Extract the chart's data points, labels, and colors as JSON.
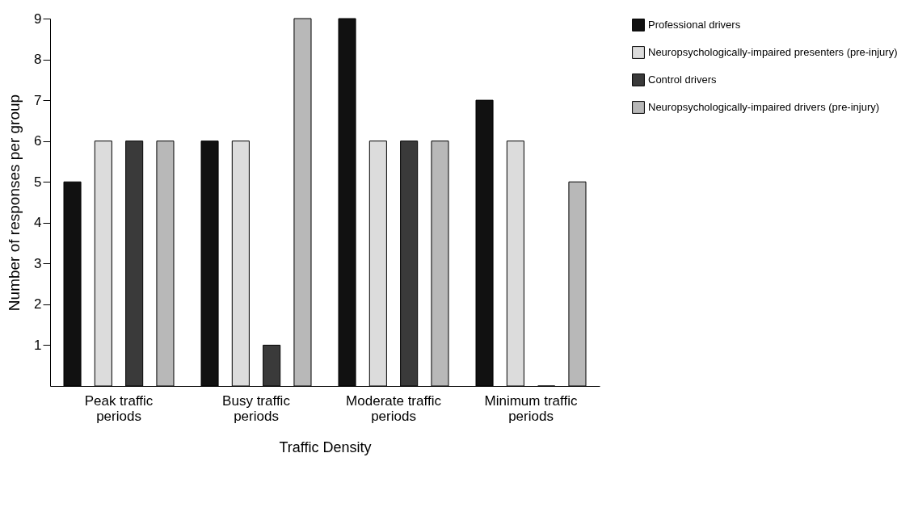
{
  "chart_data": {
    "type": "bar",
    "xlabel": "Traffic Density",
    "ylabel": "Number of responses per group",
    "categories": [
      "Peak traffic periods",
      "Busy traffic periods",
      "Moderate traffic periods",
      "Minimum traffic periods"
    ],
    "series": [
      {
        "name": "Professional drivers",
        "color": "#111111",
        "values": [
          5,
          6,
          9,
          7
        ]
      },
      {
        "name": "Neuropsychologically-impaired presenters (pre-injury)",
        "color": "#dcdcdc",
        "values": [
          6,
          6,
          6,
          6
        ]
      },
      {
        "name": "Control drivers",
        "color": "#3a3a3a",
        "values": [
          6,
          1,
          6,
          0
        ]
      },
      {
        "name": "Neuropsychologically-impaired drivers (pre-injury)",
        "color": "#b8b8b8",
        "values": [
          6,
          9,
          6,
          5
        ]
      }
    ],
    "ylim": [
      0,
      9
    ],
    "yticks": [
      1,
      2,
      3,
      4,
      5,
      6,
      7,
      8,
      9
    ],
    "grid": false,
    "legend": "top right"
  }
}
